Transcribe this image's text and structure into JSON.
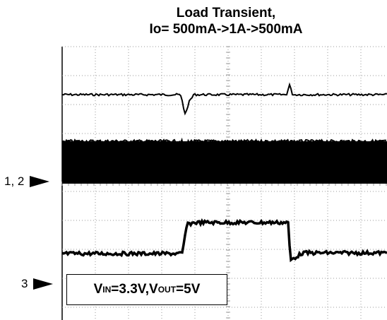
{
  "chart_data": {
    "type": "line",
    "title": "Load Transient,",
    "subtitle": "Io= 500mA->1A->500mA",
    "grid": true,
    "channel_markers": [
      {
        "label": "1, 2"
      },
      {
        "label": "3"
      }
    ],
    "note": {
      "vin_prefix": "V",
      "vin_sub": "IN",
      "vin_value": "=3.3V, ",
      "vout_prefix": "V",
      "vout_sub": "OUT",
      "vout_value": "=5V"
    }
  }
}
